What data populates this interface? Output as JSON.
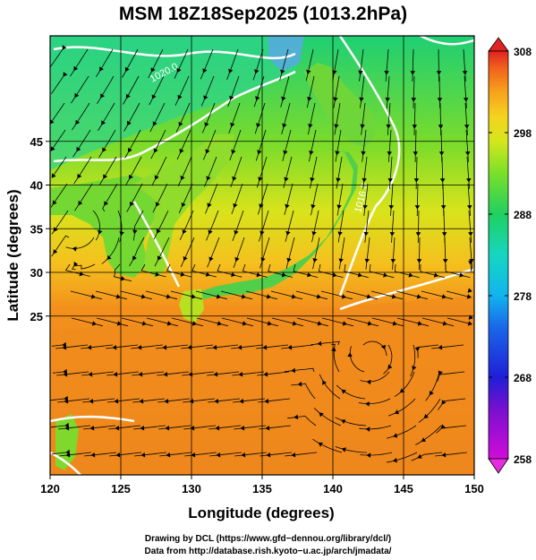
{
  "title": "MSM 18Z18Sep2025 (1013.2hPa)",
  "xlabel": "Longitude (degrees)",
  "ylabel": "Latitude  (degrees)",
  "x_ticks": [
    "120",
    "125",
    "130",
    "135",
    "140",
    "145",
    "150"
  ],
  "y_ticks": [
    "25",
    "30",
    "35",
    "40",
    "45"
  ],
  "colorbar": {
    "ticks": [
      "308",
      "298",
      "288",
      "278",
      "268",
      "258"
    ],
    "min": 258,
    "max": 308,
    "colors": [
      "#d10cd8",
      "#7a10d0",
      "#1f1fd6",
      "#1a66e8",
      "#11b4ef",
      "#16d6c0",
      "#20d060",
      "#7ae02a",
      "#d6e61c",
      "#f5d21e",
      "#f7a21c",
      "#f0601c",
      "#e02222"
    ]
  },
  "contour_labels": [
    "1020.0",
    "1016.0"
  ],
  "credits": {
    "line1": "Drawing by DCL (https://www.gfd−dennou.org/library/dcl/)",
    "line2": "Data from http://database.rish.kyoto−u.ac.jp/arch/jmadata/"
  },
  "colors": {
    "ocean_warm": "#f08a1c",
    "ocean_mid": "#f5b01e",
    "land": "#74d832",
    "north": "#28cc6a",
    "contour": "#ffffff",
    "streamline": "#000000"
  }
}
